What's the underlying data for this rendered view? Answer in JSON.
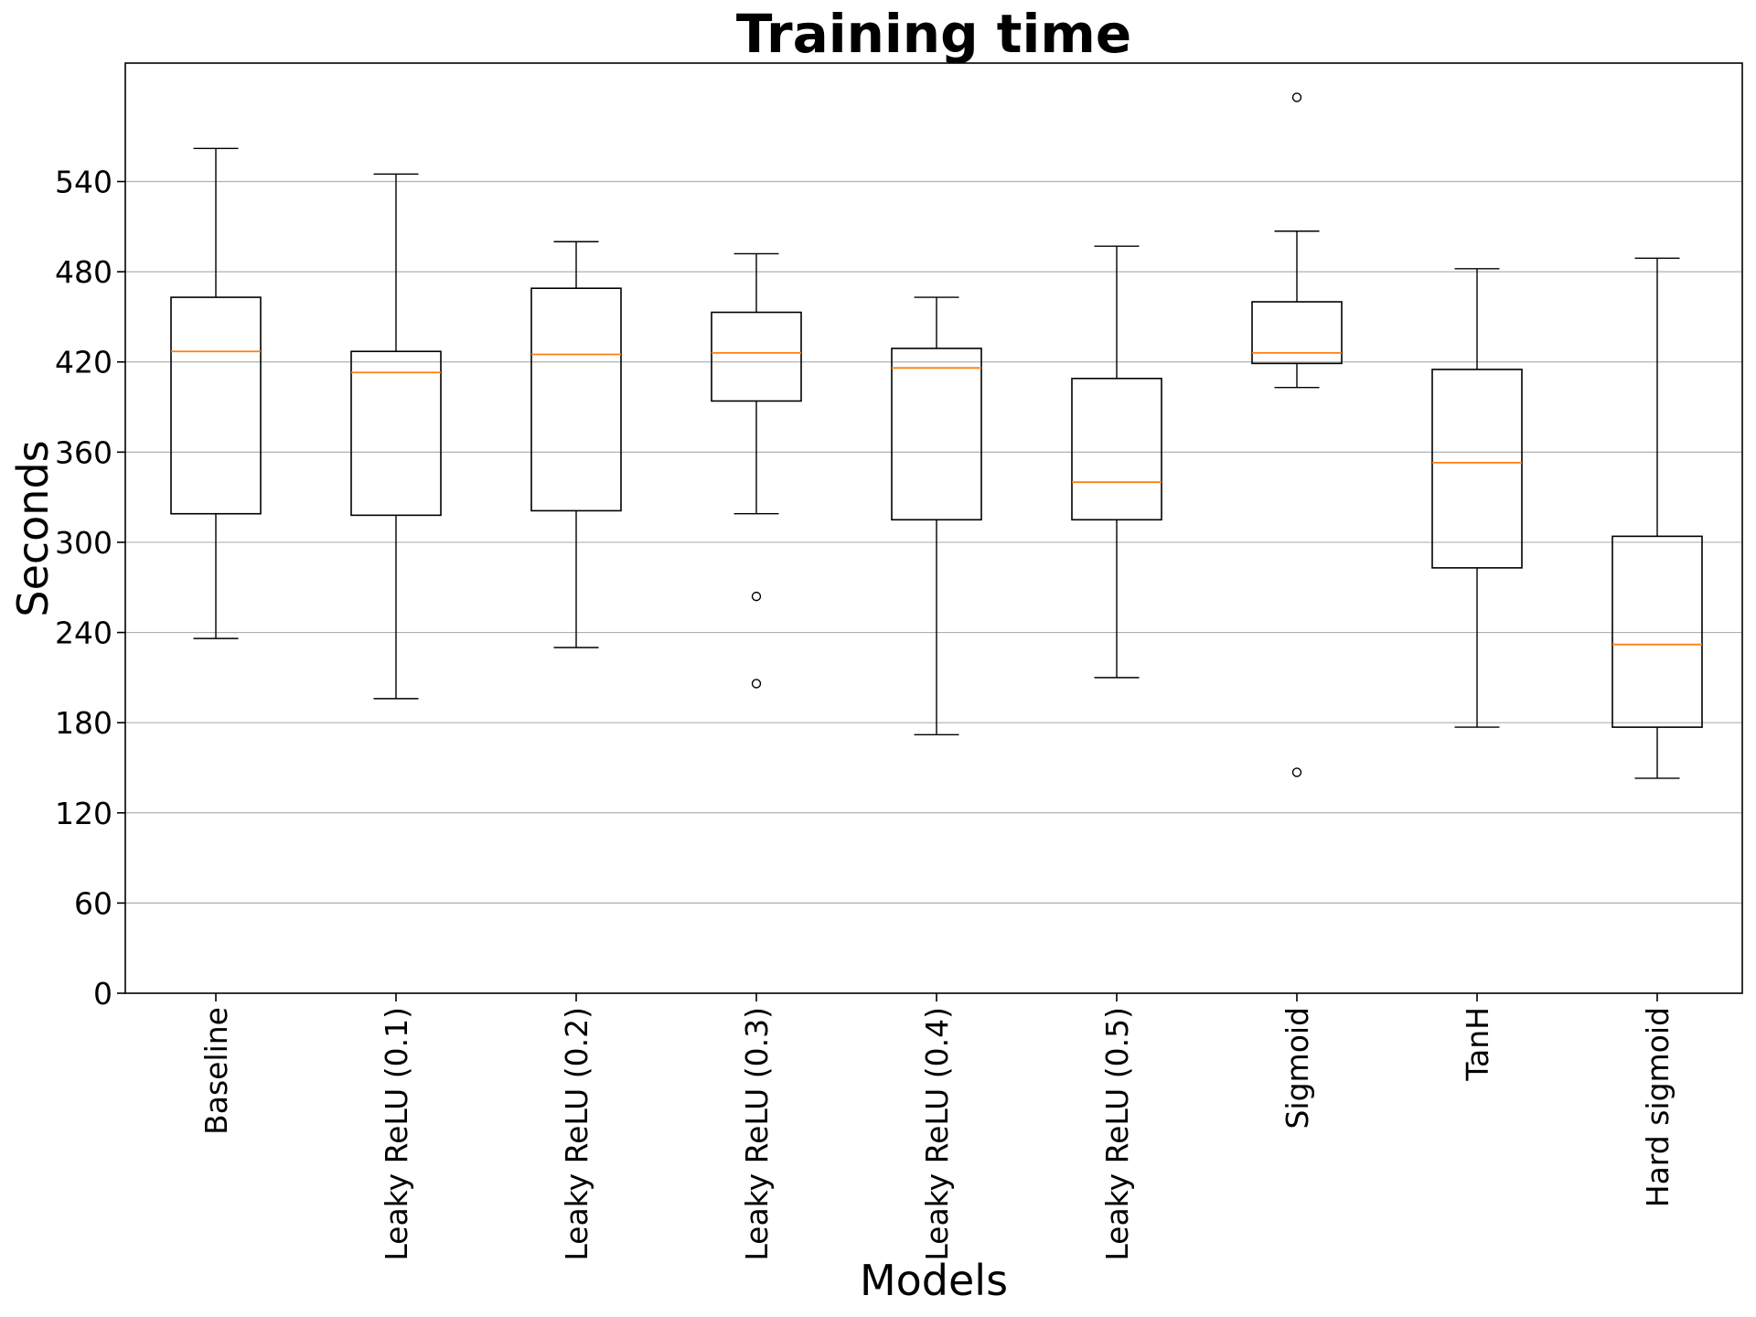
{
  "chart_data": {
    "type": "box",
    "title": "Training time",
    "xlabel": "Models",
    "ylabel": "Seconds",
    "ylim": [
      0,
      620
    ],
    "yticks": [
      0,
      60,
      120,
      180,
      240,
      300,
      360,
      420,
      480,
      540
    ],
    "grid": "horizontal",
    "colors": {
      "box": "#000000",
      "median": "#ff7f0e",
      "grid": "#b0b0b0",
      "background": "#ffffff"
    },
    "categories": [
      "Baseline",
      "Leaky ReLU (0.1)",
      "Leaky ReLU (0.2)",
      "Leaky ReLU (0.3)",
      "Leaky ReLU (0.4)",
      "Leaky ReLU (0.5)",
      "Sigmoid",
      "TanH",
      "Hard sigmoid"
    ],
    "boxes": [
      {
        "whisker_low": 236,
        "q1": 319,
        "median": 427,
        "q3": 463,
        "whisker_high": 562,
        "outliers": []
      },
      {
        "whisker_low": 196,
        "q1": 318,
        "median": 413,
        "q3": 427,
        "whisker_high": 545,
        "outliers": []
      },
      {
        "whisker_low": 230,
        "q1": 321,
        "median": 425,
        "q3": 469,
        "whisker_high": 500,
        "outliers": []
      },
      {
        "whisker_low": 319,
        "q1": 394,
        "median": 426,
        "q3": 453,
        "whisker_high": 492,
        "outliers": [
          264,
          206
        ]
      },
      {
        "whisker_low": 172,
        "q1": 315,
        "median": 416,
        "q3": 429,
        "whisker_high": 463,
        "outliers": []
      },
      {
        "whisker_low": 210,
        "q1": 315,
        "median": 340,
        "q3": 409,
        "whisker_high": 497,
        "outliers": []
      },
      {
        "whisker_low": 403,
        "q1": 419,
        "median": 426,
        "q3": 460,
        "whisker_high": 507,
        "outliers": [
          596,
          147
        ]
      },
      {
        "whisker_low": 177,
        "q1": 283,
        "median": 353,
        "q3": 415,
        "whisker_high": 482,
        "outliers": []
      },
      {
        "whisker_low": 143,
        "q1": 177,
        "median": 232,
        "q3": 304,
        "whisker_high": 489,
        "outliers": []
      }
    ]
  }
}
